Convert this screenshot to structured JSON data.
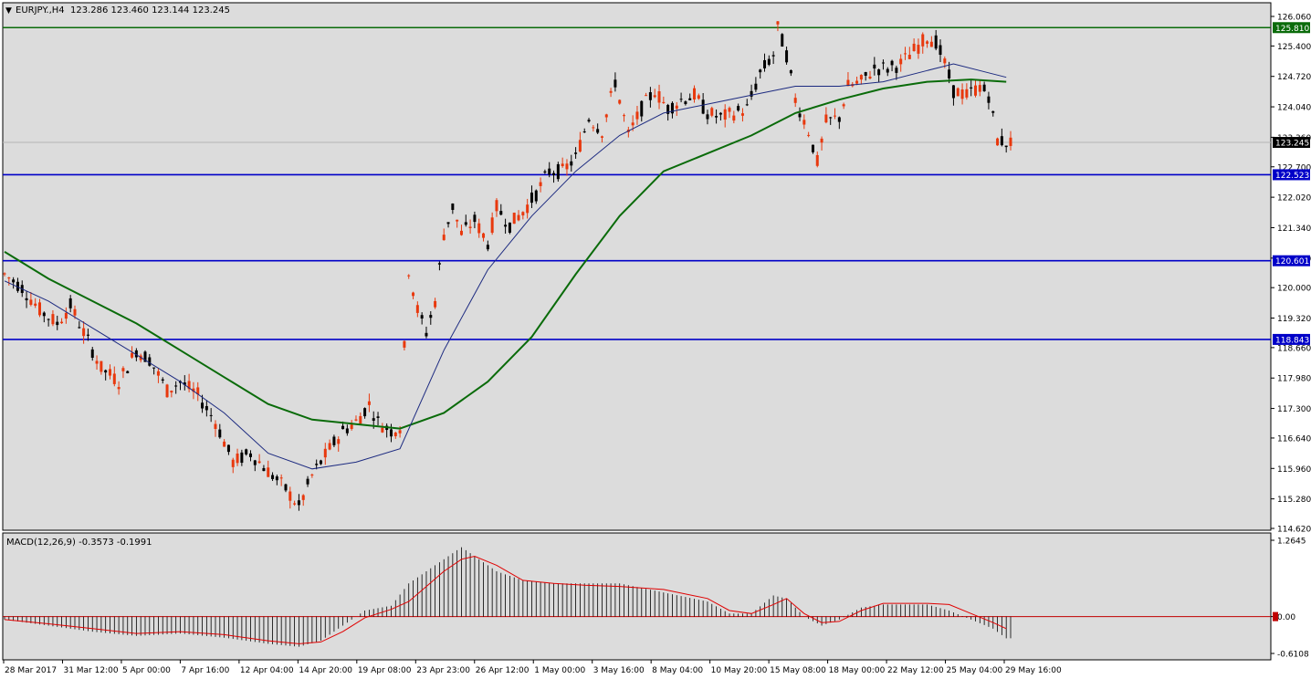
{
  "colors": {
    "background": "#ffffff",
    "plot_bg": "#dcdcdc",
    "bull": "#e8380d",
    "bear": "#000000",
    "ma_fast": "#1c2a80",
    "ma_slow": "#0a6b0a",
    "level_top": "#0a6b0a",
    "levels": "#0000c8",
    "macd_hist": "#000000",
    "macd_signal": "#e00000",
    "price_tag_bg": "#000000"
  },
  "header": {
    "symbol": "EURJPY.,H4",
    "ohlc": "123.286 123.460 123.144 123.245"
  },
  "macd_header": {
    "label": "MACD(12,26,9) -0.3573 -0.1991"
  },
  "chart_data": [
    {
      "type": "candlestick",
      "symbol": "EURJPY.",
      "timeframe": "H4",
      "ylim": [
        114.62,
        126.06
      ],
      "y_ticks": [
        "126.060",
        "125.400",
        "124.720",
        "124.040",
        "123.360",
        "122.700",
        "122.020",
        "121.340",
        "120.660",
        "120.000",
        "119.320",
        "118.660",
        "117.980",
        "117.300",
        "116.640",
        "115.960",
        "115.280",
        "114.620"
      ],
      "x_tick_labels": [
        "28 Mar 2017",
        "31 Mar 12:00",
        "5 Apr 00:00",
        "7 Apr 16:00",
        "12 Apr 04:00",
        "14 Apr 20:00",
        "19 Apr 08:00",
        "23 Apr 23:00",
        "26 Apr 12:00",
        "1 May 00:00",
        "3 May 16:00",
        "8 May 04:00",
        "10 May 20:00",
        "15 May 08:00",
        "18 May 00:00",
        "22 May 12:00",
        "25 May 04:00",
        "29 May 16:00"
      ],
      "current_price": "123.245",
      "horizontal_levels": [
        {
          "value": 125.81,
          "label": "125.810",
          "color": "#0a6b0a"
        },
        {
          "value": 122.523,
          "label": "122.523",
          "color": "#0000c8"
        },
        {
          "value": 120.601,
          "label": "120.601",
          "color": "#0000c8"
        },
        {
          "value": 118.843,
          "label": "118.843",
          "color": "#0000c8"
        }
      ],
      "price_path": [
        [
          0,
          120.3
        ],
        [
          4,
          120.0
        ],
        [
          8,
          119.5
        ],
        [
          12,
          119.2
        ],
        [
          15,
          119.6
        ],
        [
          18,
          119.0
        ],
        [
          22,
          118.2
        ],
        [
          26,
          117.9
        ],
        [
          30,
          118.6
        ],
        [
          33,
          118.4
        ],
        [
          37,
          117.7
        ],
        [
          40,
          117.9
        ],
        [
          44,
          117.6
        ],
        [
          48,
          117.0
        ],
        [
          52,
          116.1
        ],
        [
          56,
          116.3
        ],
        [
          60,
          115.9
        ],
        [
          64,
          115.5
        ],
        [
          67,
          115.1
        ],
        [
          70,
          115.8
        ],
        [
          74,
          116.4
        ],
        [
          77,
          116.8
        ],
        [
          80,
          117.0
        ],
        [
          83,
          117.4
        ],
        [
          85,
          117.0
        ],
        [
          88,
          116.8
        ],
        [
          90,
          116.9
        ],
        [
          92,
          120.4
        ],
        [
          94,
          119.5
        ],
        [
          96,
          119.0
        ],
        [
          98,
          119.7
        ],
        [
          100,
          121.2
        ],
        [
          102,
          121.8
        ],
        [
          104,
          121.2
        ],
        [
          107,
          121.5
        ],
        [
          110,
          121.0
        ],
        [
          112,
          121.8
        ],
        [
          115,
          121.4
        ],
        [
          118,
          121.7
        ],
        [
          121,
          122.1
        ],
        [
          124,
          122.6
        ],
        [
          127,
          122.6
        ],
        [
          130,
          122.9
        ],
        [
          133,
          123.8
        ],
        [
          136,
          123.5
        ],
        [
          139,
          124.6
        ],
        [
          142,
          123.4
        ],
        [
          145,
          124.0
        ],
        [
          148,
          124.4
        ],
        [
          151,
          124.0
        ],
        [
          154,
          124.2
        ],
        [
          157,
          124.3
        ],
        [
          160,
          123.9
        ],
        [
          163,
          123.8
        ],
        [
          166,
          123.9
        ],
        [
          169,
          124.0
        ],
        [
          172,
          124.8
        ],
        [
          175,
          125.2
        ],
        [
          176,
          125.8
        ],
        [
          178,
          125.2
        ],
        [
          180,
          124.2
        ],
        [
          183,
          123.5
        ],
        [
          185,
          122.8
        ],
        [
          187,
          123.7
        ],
        [
          190,
          123.8
        ],
        [
          192,
          124.5
        ],
        [
          195,
          124.6
        ],
        [
          198,
          124.9
        ],
        [
          201,
          124.9
        ],
        [
          204,
          125.0
        ],
        [
          207,
          125.3
        ],
        [
          210,
          125.6
        ],
        [
          212,
          125.5
        ],
        [
          214,
          125.0
        ],
        [
          216,
          124.4
        ],
        [
          219,
          124.3
        ],
        [
          222,
          124.5
        ],
        [
          224,
          124.3
        ],
        [
          226,
          123.3
        ],
        [
          228,
          123.245
        ]
      ],
      "ma_fast_path": [
        [
          0,
          120.15
        ],
        [
          10,
          119.7
        ],
        [
          20,
          119.1
        ],
        [
          30,
          118.5
        ],
        [
          40,
          117.9
        ],
        [
          50,
          117.2
        ],
        [
          60,
          116.3
        ],
        [
          70,
          115.95
        ],
        [
          80,
          116.1
        ],
        [
          90,
          116.4
        ],
        [
          100,
          118.6
        ],
        [
          110,
          120.4
        ],
        [
          120,
          121.6
        ],
        [
          130,
          122.6
        ],
        [
          140,
          123.4
        ],
        [
          150,
          123.9
        ],
        [
          160,
          124.1
        ],
        [
          170,
          124.3
        ],
        [
          180,
          124.5
        ],
        [
          190,
          124.5
        ],
        [
          200,
          124.6
        ],
        [
          210,
          124.85
        ],
        [
          216,
          125.0
        ],
        [
          224,
          124.8
        ],
        [
          228,
          124.7
        ]
      ],
      "ma_slow_path": [
        [
          0,
          120.8
        ],
        [
          10,
          120.2
        ],
        [
          20,
          119.7
        ],
        [
          30,
          119.2
        ],
        [
          40,
          118.6
        ],
        [
          50,
          118.0
        ],
        [
          60,
          117.4
        ],
        [
          70,
          117.05
        ],
        [
          80,
          116.95
        ],
        [
          90,
          116.85
        ],
        [
          100,
          117.2
        ],
        [
          110,
          117.9
        ],
        [
          120,
          118.9
        ],
        [
          130,
          120.3
        ],
        [
          140,
          121.6
        ],
        [
          150,
          122.6
        ],
        [
          160,
          123.0
        ],
        [
          170,
          123.4
        ],
        [
          180,
          123.9
        ],
        [
          190,
          124.2
        ],
        [
          200,
          124.45
        ],
        [
          210,
          124.6
        ],
        [
          220,
          124.65
        ],
        [
          228,
          124.6
        ]
      ]
    },
    {
      "type": "macd",
      "params": "12,26,9",
      "ylim": [
        -0.6108,
        1.2645
      ],
      "y_ticks": [
        "1.2645",
        "0.00",
        "-0.6108"
      ],
      "macd_path": [
        [
          0,
          -0.05
        ],
        [
          10,
          -0.15
        ],
        [
          20,
          -0.25
        ],
        [
          30,
          -0.32
        ],
        [
          40,
          -0.28
        ],
        [
          50,
          -0.35
        ],
        [
          60,
          -0.45
        ],
        [
          67,
          -0.5
        ],
        [
          72,
          -0.4
        ],
        [
          77,
          -0.15
        ],
        [
          82,
          0.1
        ],
        [
          88,
          0.18
        ],
        [
          92,
          0.55
        ],
        [
          96,
          0.75
        ],
        [
          100,
          0.95
        ],
        [
          104,
          1.15
        ],
        [
          107,
          1.0
        ],
        [
          112,
          0.75
        ],
        [
          118,
          0.6
        ],
        [
          125,
          0.55
        ],
        [
          132,
          0.55
        ],
        [
          140,
          0.55
        ],
        [
          150,
          0.4
        ],
        [
          160,
          0.25
        ],
        [
          165,
          0.05
        ],
        [
          170,
          0.05
        ],
        [
          175,
          0.35
        ],
        [
          178,
          0.3
        ],
        [
          182,
          0.0
        ],
        [
          186,
          -0.15
        ],
        [
          190,
          -0.05
        ],
        [
          195,
          0.15
        ],
        [
          200,
          0.2
        ],
        [
          210,
          0.2
        ],
        [
          215,
          0.1
        ],
        [
          220,
          -0.05
        ],
        [
          225,
          -0.2
        ],
        [
          228,
          -0.36
        ]
      ],
      "signal_path": [
        [
          0,
          -0.05
        ],
        [
          10,
          -0.12
        ],
        [
          20,
          -0.2
        ],
        [
          30,
          -0.28
        ],
        [
          40,
          -0.25
        ],
        [
          50,
          -0.3
        ],
        [
          60,
          -0.4
        ],
        [
          67,
          -0.45
        ],
        [
          72,
          -0.42
        ],
        [
          77,
          -0.25
        ],
        [
          82,
          -0.02
        ],
        [
          88,
          0.12
        ],
        [
          92,
          0.25
        ],
        [
          96,
          0.5
        ],
        [
          100,
          0.75
        ],
        [
          104,
          0.95
        ],
        [
          107,
          1.0
        ],
        [
          112,
          0.85
        ],
        [
          118,
          0.6
        ],
        [
          125,
          0.55
        ],
        [
          132,
          0.52
        ],
        [
          140,
          0.5
        ],
        [
          150,
          0.45
        ],
        [
          160,
          0.3
        ],
        [
          165,
          0.1
        ],
        [
          170,
          0.05
        ],
        [
          175,
          0.2
        ],
        [
          178,
          0.3
        ],
        [
          182,
          0.05
        ],
        [
          186,
          -0.1
        ],
        [
          190,
          -0.08
        ],
        [
          195,
          0.1
        ],
        [
          200,
          0.22
        ],
        [
          210,
          0.22
        ],
        [
          215,
          0.2
        ],
        [
          220,
          0.05
        ],
        [
          225,
          -0.1
        ],
        [
          228,
          -0.2
        ]
      ]
    }
  ]
}
